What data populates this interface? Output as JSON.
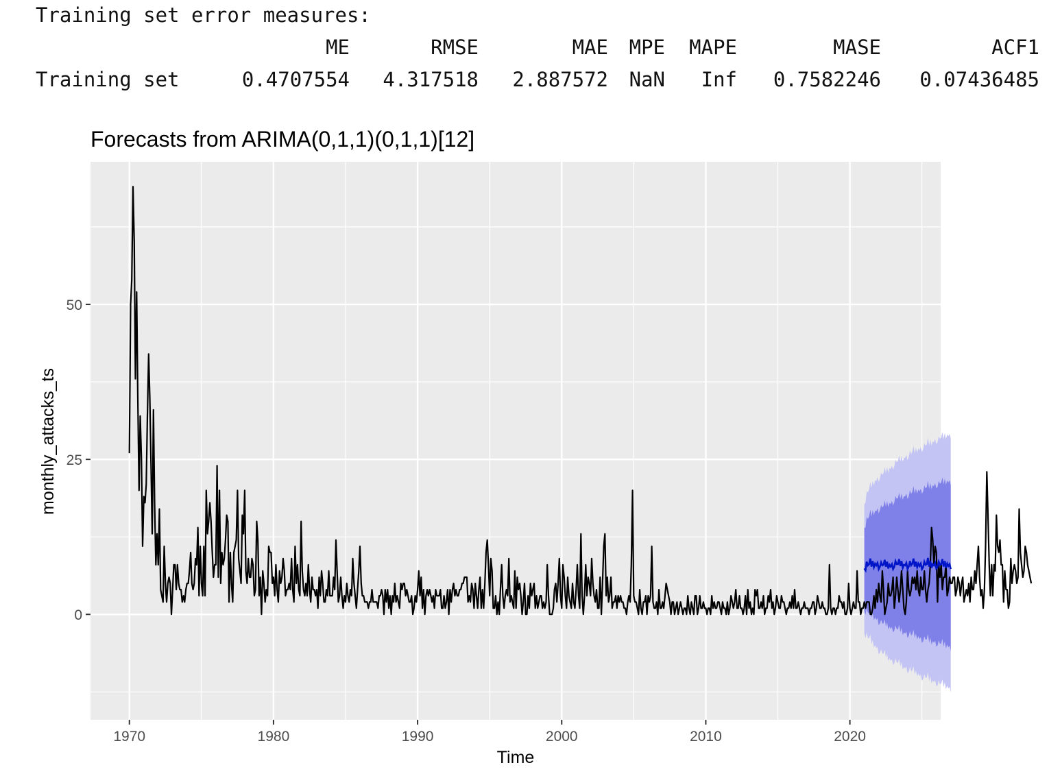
{
  "console": {
    "heading": "Training set error measures:",
    "headers": [
      "ME",
      "RMSE",
      "MAE",
      "MPE",
      "MAPE",
      "MASE",
      "ACF1"
    ],
    "row_label": "Training set",
    "row_values": [
      "0.4707554",
      "4.317518",
      "2.887572",
      "NaN",
      "Inf",
      "0.7582246",
      "0.07436485"
    ]
  },
  "chart_data": {
    "type": "line",
    "title": "Forecasts from ARIMA(0,1,1)(0,1,1)[12]",
    "xlabel": "Time",
    "ylabel": "monthly_attacks_ts",
    "xlim": [
      1967.3,
      2026.3
    ],
    "ylim": [
      -17,
      73
    ],
    "x_ticks": [
      1970,
      1980,
      1990,
      2000,
      2010,
      2020
    ],
    "x_tick_labels": [
      "1970",
      "1980",
      "1990",
      "2000",
      "2010",
      "2020"
    ],
    "y_ticks": [
      0,
      25,
      50
    ],
    "y_tick_labels": [
      "0",
      "25",
      "50"
    ],
    "grid": true,
    "colors": {
      "panel": "#ebebeb",
      "grid": "#ffffff",
      "series": "#000000",
      "forecast_mean": "#0015c8",
      "interval_80": "#7f80e8",
      "interval_95": "#c3c4f4"
    },
    "series": [
      {
        "start": 1970.0,
        "frequency": 12,
        "values": [
          26,
          50,
          54,
          69,
          60,
          38,
          52,
          35,
          20,
          32,
          25,
          11,
          19,
          18,
          21,
          32,
          42,
          35,
          24,
          13,
          33,
          18,
          8,
          13,
          8,
          17,
          4,
          3,
          2,
          11,
          5,
          2,
          5,
          6,
          5,
          0,
          4,
          8,
          8,
          4,
          8,
          5,
          4,
          4,
          2,
          3,
          2,
          4,
          5,
          5,
          7,
          10,
          5,
          4,
          5,
          9,
          8,
          14,
          3,
          11,
          5,
          3,
          11,
          3,
          20,
          13,
          15,
          18,
          15,
          10,
          6,
          8,
          8,
          24,
          6,
          20,
          5,
          10,
          8,
          9,
          12,
          16,
          15,
          2,
          10,
          5,
          2,
          10,
          11,
          12,
          20,
          9,
          7,
          5,
          16,
          13,
          20,
          7,
          5,
          9,
          6,
          6,
          9,
          8,
          3,
          4,
          15,
          12,
          3,
          6,
          0,
          7,
          5,
          2,
          4,
          3,
          11,
          10,
          10,
          5,
          6,
          3,
          8,
          4,
          2,
          7,
          5,
          6,
          9,
          7,
          3,
          4,
          4,
          5,
          4,
          9,
          4,
          2,
          11,
          5,
          8,
          4,
          3,
          15,
          7,
          4,
          3,
          5,
          3,
          8,
          4,
          2,
          6,
          4,
          4,
          3,
          4,
          1,
          6,
          3,
          7,
          5,
          2,
          2,
          4,
          3,
          7,
          3,
          3,
          3,
          6,
          4,
          12,
          7,
          2,
          3,
          6,
          3,
          1,
          3,
          2,
          5,
          3,
          2,
          4,
          3,
          9,
          5,
          3,
          1,
          4,
          7,
          11,
          5,
          3,
          3,
          2,
          2,
          2,
          1,
          2,
          2,
          4,
          2,
          2,
          2,
          2,
          1,
          3,
          3,
          4,
          3,
          0,
          4,
          2,
          4,
          1,
          3,
          0,
          3,
          2,
          5,
          2,
          3,
          2,
          1,
          5,
          4,
          5,
          5,
          3,
          4,
          3,
          2,
          2,
          3,
          0,
          1,
          3,
          2,
          4,
          7,
          3,
          6,
          1,
          4,
          0,
          3,
          4,
          3,
          4,
          3,
          2,
          3,
          1,
          4,
          3,
          3,
          3,
          4,
          1,
          1,
          3,
          1,
          2,
          4,
          0,
          4,
          2,
          4,
          5,
          3,
          4,
          3,
          3,
          4,
          4,
          5,
          5,
          6,
          6,
          6,
          2,
          3,
          2,
          5,
          4,
          1,
          5,
          3,
          1,
          4,
          6,
          1,
          4,
          1,
          5,
          10,
          12,
          8,
          3,
          9,
          7,
          1,
          1,
          3,
          0,
          2,
          0,
          4,
          8,
          3,
          1,
          3,
          4,
          3,
          9,
          2,
          3,
          2,
          1,
          7,
          1,
          6,
          4,
          5,
          3,
          0,
          2,
          5,
          0,
          0,
          3,
          1,
          5,
          3,
          4,
          5,
          1,
          3,
          1,
          2,
          3,
          3,
          1,
          2,
          1,
          2,
          8,
          3,
          0,
          0,
          0,
          1,
          4,
          5,
          2,
          5,
          9,
          3,
          1,
          8,
          6,
          3,
          1,
          6,
          3,
          2,
          1,
          5,
          2,
          1,
          4,
          8,
          3,
          1,
          13,
          3,
          0,
          3,
          8,
          3,
          6,
          5,
          3,
          9,
          5,
          3,
          2,
          4,
          1,
          1,
          6,
          0,
          5,
          11,
          13,
          3,
          6,
          2,
          3,
          6,
          1,
          2,
          2,
          3,
          1,
          3,
          2,
          3,
          2,
          2,
          1,
          1,
          0,
          2,
          3,
          2,
          8,
          20,
          3,
          2,
          2,
          1,
          0,
          4,
          1,
          0,
          2,
          2,
          3,
          0,
          3,
          2,
          3,
          11,
          2,
          1,
          1,
          2,
          0,
          4,
          1,
          1,
          2,
          1,
          3,
          5,
          4,
          3,
          2,
          0,
          2,
          2,
          0,
          1,
          2,
          0,
          1,
          2,
          1,
          0,
          1,
          1,
          0,
          3,
          1,
          0,
          2,
          1,
          0,
          3,
          3,
          0,
          1,
          3,
          1,
          1,
          2,
          1,
          1,
          0,
          1,
          1,
          0,
          3,
          1,
          2,
          1,
          1,
          2,
          2,
          1,
          0,
          2,
          1,
          1,
          0,
          2,
          0,
          1,
          3,
          2,
          1,
          2,
          4,
          1,
          1,
          3,
          1,
          1,
          0,
          1,
          3,
          0,
          4,
          1,
          2,
          0,
          1,
          0,
          4,
          3,
          4,
          1,
          1,
          2,
          1,
          3,
          0,
          1,
          1,
          3,
          2,
          4,
          1,
          2,
          0,
          1,
          3,
          2,
          1,
          1,
          3,
          2,
          2,
          1,
          0,
          1,
          1,
          2,
          1,
          3,
          1,
          4,
          1,
          1,
          2,
          1,
          0,
          1,
          1,
          2,
          1,
          1,
          1,
          0,
          1,
          1,
          2,
          2,
          0,
          1,
          3,
          2,
          1,
          1,
          2,
          1,
          1,
          0,
          0,
          1,
          8,
          1,
          0,
          1,
          1,
          0,
          1,
          1,
          3,
          2,
          2,
          1,
          2,
          0,
          0,
          1,
          5,
          1,
          0,
          1,
          2,
          1,
          1,
          7,
          2,
          2,
          0,
          1,
          1,
          2,
          1,
          2,
          2,
          2,
          0,
          0,
          1,
          3,
          1,
          4,
          2,
          5,
          3,
          2,
          7,
          4,
          0,
          1,
          2,
          5,
          3,
          3,
          4,
          6,
          1,
          3,
          6,
          4,
          2,
          4,
          7,
          4,
          1,
          0,
          2,
          7,
          4,
          3,
          4,
          6,
          5,
          6,
          4,
          7,
          4,
          3,
          6,
          4,
          4,
          7,
          4,
          2,
          4,
          5,
          8,
          14,
          12,
          8,
          11,
          10,
          2,
          8,
          6,
          8,
          4,
          6,
          6,
          8,
          3,
          4,
          6,
          5,
          5,
          6,
          6,
          3,
          4,
          6,
          5,
          3,
          5,
          6,
          2,
          3,
          4,
          3,
          5,
          2,
          6,
          4,
          4,
          7,
          5,
          8,
          11,
          6,
          3,
          4,
          1,
          4,
          11,
          23,
          16,
          8,
          3,
          8,
          3,
          8,
          7,
          16,
          11,
          10,
          12,
          8,
          8,
          2,
          7,
          4,
          4,
          1,
          2,
          9,
          5,
          7,
          8,
          7,
          5,
          6,
          17,
          10,
          8,
          6,
          7,
          11,
          10,
          8,
          7,
          6,
          5
        ]
      }
    ],
    "forecast": {
      "start": 2021.0,
      "frequency": 12,
      "mean": [
        7.4,
        7.1,
        8.5,
        7.9,
        8.1,
        9.0,
        7.7,
        8.6,
        7.6,
        8.2,
        7.9,
        8.3,
        7.3,
        7.7,
        8.4,
        7.9,
        8.0,
        8.8,
        7.7,
        8.5,
        7.4,
        8.0,
        7.7,
        8.1,
        7.3,
        7.7,
        8.6,
        8.1,
        8.1,
        8.9,
        7.8,
        8.6,
        7.5,
        8.0,
        7.9,
        8.3,
        7.3,
        7.7,
        8.6,
        7.9,
        8.2,
        9.0,
        7.7,
        8.5,
        7.6,
        8.2,
        7.8,
        8.2,
        7.3,
        7.6,
        8.5,
        8.0,
        8.1,
        9.1,
        7.7,
        8.6,
        7.5,
        8.1,
        7.9,
        8.3,
        7.4,
        7.6,
        8.5,
        8.0,
        8.1,
        8.9,
        7.7,
        8.6,
        7.5,
        8.2,
        7.8,
        8.1,
        7.3
      ],
      "lo80_start": 1.4,
      "lo80_end": -5.8,
      "hi80_start": 13.0,
      "hi80_end": 21.0,
      "lo95_start": -1.8,
      "lo95_end": -12.5,
      "hi95_start": 16.3,
      "hi95_end": 28.5
    }
  }
}
